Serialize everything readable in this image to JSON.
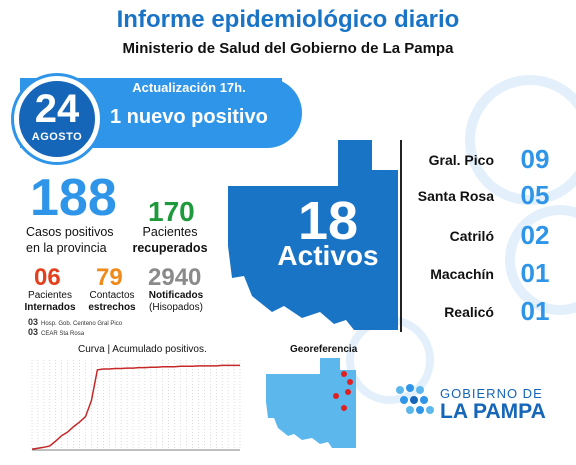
{
  "header": {
    "title": "Informe epidemiológico diario",
    "subtitle": "Ministerio de Salud del Gobierno de La Pampa"
  },
  "date": {
    "day": "24",
    "month": "AGOSTO"
  },
  "update": {
    "label": "Actualización 17h.",
    "headline": "1 nuevo positivo"
  },
  "totals": {
    "positive_cases": "188",
    "positive_label_line1": "Casos positivos",
    "positive_label_line2": "en la provincia",
    "recovered": "170",
    "recovered_line1": "Pacientes",
    "recovered_line2": "recuperados"
  },
  "stats": {
    "hospitalized": "06",
    "hospitalized_line1": "Pacientes",
    "hospitalized_line2": "Internados",
    "contacts": "79",
    "contacts_line1": "Contactos",
    "contacts_line2": "estrechos",
    "notified": "2940",
    "notified_line1": "Notificados",
    "notified_line2": "(Hisopados)"
  },
  "hospitals": [
    {
      "count": "03",
      "name": "Hosp. Gob. Centeno Gral Pico"
    },
    {
      "count": "03",
      "name": "CEAR Sta Rosa"
    }
  ],
  "active": {
    "count": "18",
    "label": "Activos"
  },
  "cities": [
    {
      "name": "Gral. Pico",
      "value": "09"
    },
    {
      "name": "Santa Rosa",
      "value": "05"
    },
    {
      "name": "Catriló",
      "value": "02"
    },
    {
      "name": "Macachín",
      "value": "01"
    },
    {
      "name": "Realicó",
      "value": "01"
    }
  ],
  "curve": {
    "title": "Curva | Acumulado positivos."
  },
  "map": {
    "title": "Georeferencia"
  },
  "logo": {
    "line1": "GOBIERNO DE",
    "line2": "LA PAMPA"
  },
  "colors": {
    "accent": "#2f95e8",
    "dark_blue": "#1565b8",
    "green": "#1e9a3c",
    "red": "#e4401e",
    "orange": "#f08a1a",
    "gray": "#8a8a8a"
  },
  "chart_data": {
    "type": "line",
    "title": "Curva | Acumulado positivos.",
    "x": [
      0,
      1,
      2,
      3,
      4,
      5,
      6,
      7,
      8,
      9,
      10,
      11,
      12,
      13,
      14,
      15,
      16,
      17,
      18,
      19,
      20,
      21,
      22,
      23,
      24,
      25,
      26,
      27,
      28,
      29,
      30,
      31,
      32,
      33,
      34,
      35
    ],
    "series": [
      {
        "values": [
          2,
          4,
          6,
          9,
          20,
          32,
          40,
          52,
          62,
          74,
          110,
          178,
          180,
          180,
          181,
          181,
          182,
          182,
          183,
          183,
          184,
          184,
          185,
          185,
          185,
          186,
          186,
          186,
          187,
          187,
          187,
          187,
          188,
          188,
          188,
          188
        ]
      }
    ],
    "ylim": [
      0,
      200
    ]
  }
}
